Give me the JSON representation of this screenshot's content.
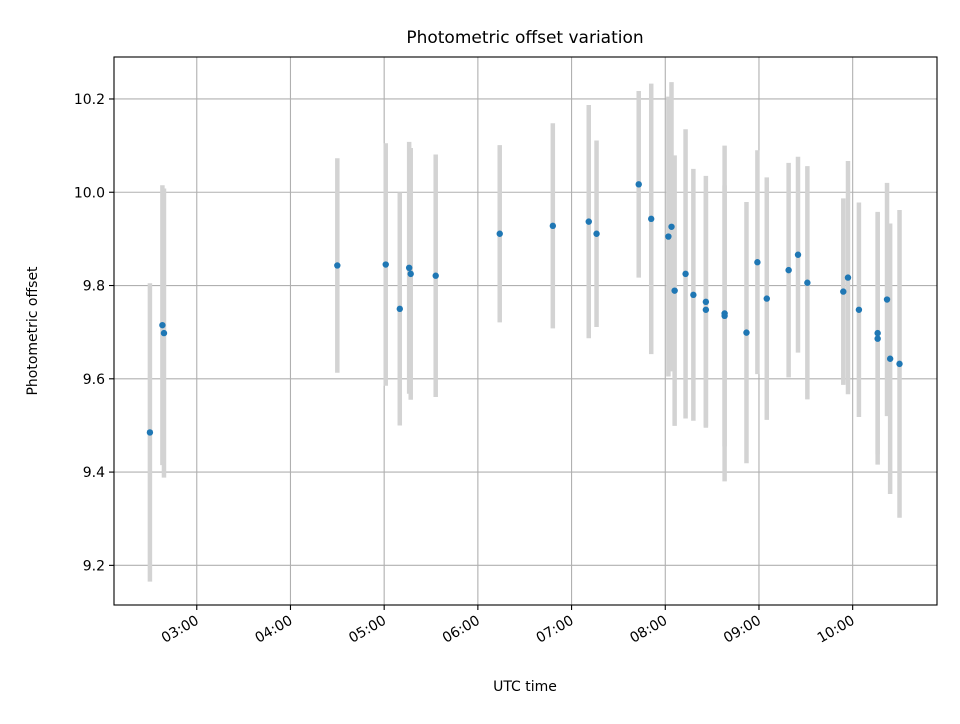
{
  "chart_data": {
    "type": "scatter",
    "title": "Photometric offset variation",
    "xlabel": "UTC time",
    "ylabel": "Photometric offset",
    "x_tick_labels": [
      "03:00",
      "04:00",
      "05:00",
      "06:00",
      "07:00",
      "08:00",
      "09:00",
      "10:00"
    ],
    "y_tick_labels": [
      "9.2",
      "9.4",
      "9.6",
      "9.8",
      "10.0",
      "10.2"
    ],
    "xlim": [
      "02:07",
      "10:54"
    ],
    "ylim": [
      9.115,
      10.29
    ],
    "grid": true,
    "colors": {
      "marker": "#1f77b4",
      "errorbar": "#d3d3d3",
      "grid": "#b0b0b0"
    },
    "points": [
      {
        "x": "02:30",
        "y": 9.485,
        "err": 0.32
      },
      {
        "x": "02:38",
        "y": 9.715,
        "err": 0.3
      },
      {
        "x": "02:39",
        "y": 9.698,
        "err": 0.31
      },
      {
        "x": "04:30",
        "y": 9.843,
        "err": 0.23
      },
      {
        "x": "05:01",
        "y": 9.845,
        "err": 0.26
      },
      {
        "x": "05:10",
        "y": 9.75,
        "err": 0.25
      },
      {
        "x": "05:16",
        "y": 9.838,
        "err": 0.27
      },
      {
        "x": "05:17",
        "y": 9.825,
        "err": 0.27
      },
      {
        "x": "05:33",
        "y": 9.821,
        "err": 0.26
      },
      {
        "x": "06:14",
        "y": 9.911,
        "err": 0.19
      },
      {
        "x": "06:48",
        "y": 9.928,
        "err": 0.22
      },
      {
        "x": "07:11",
        "y": 9.937,
        "err": 0.25
      },
      {
        "x": "07:16",
        "y": 9.911,
        "err": 0.2
      },
      {
        "x": "07:43",
        "y": 10.017,
        "err": 0.2
      },
      {
        "x": "07:51",
        "y": 9.943,
        "err": 0.29
      },
      {
        "x": "08:02",
        "y": 9.905,
        "err": 0.3
      },
      {
        "x": "08:04",
        "y": 9.926,
        "err": 0.31
      },
      {
        "x": "08:06",
        "y": 9.789,
        "err": 0.29
      },
      {
        "x": "08:13",
        "y": 9.825,
        "err": 0.31
      },
      {
        "x": "08:18",
        "y": 9.78,
        "err": 0.27
      },
      {
        "x": "08:26",
        "y": 9.765,
        "err": 0.27
      },
      {
        "x": "08:26",
        "y": 9.748,
        "err": 0.25
      },
      {
        "x": "08:38",
        "y": 9.74,
        "err": 0.36
      },
      {
        "x": "08:38",
        "y": 9.735,
        "err": 0.28
      },
      {
        "x": "08:52",
        "y": 9.699,
        "err": 0.28
      },
      {
        "x": "08:59",
        "y": 9.85,
        "err": 0.24
      },
      {
        "x": "09:05",
        "y": 9.772,
        "err": 0.26
      },
      {
        "x": "09:19",
        "y": 9.833,
        "err": 0.23
      },
      {
        "x": "09:25",
        "y": 9.866,
        "err": 0.21
      },
      {
        "x": "09:31",
        "y": 9.806,
        "err": 0.25
      },
      {
        "x": "09:54",
        "y": 9.787,
        "err": 0.2
      },
      {
        "x": "09:57",
        "y": 9.817,
        "err": 0.25
      },
      {
        "x": "10:04",
        "y": 9.748,
        "err": 0.23
      },
      {
        "x": "10:16",
        "y": 9.698,
        "err": 0.26
      },
      {
        "x": "10:16",
        "y": 9.686,
        "err": 0.27
      },
      {
        "x": "10:22",
        "y": 9.77,
        "err": 0.25
      },
      {
        "x": "10:24",
        "y": 9.643,
        "err": 0.29
      },
      {
        "x": "10:30",
        "y": 9.632,
        "err": 0.33
      }
    ]
  }
}
